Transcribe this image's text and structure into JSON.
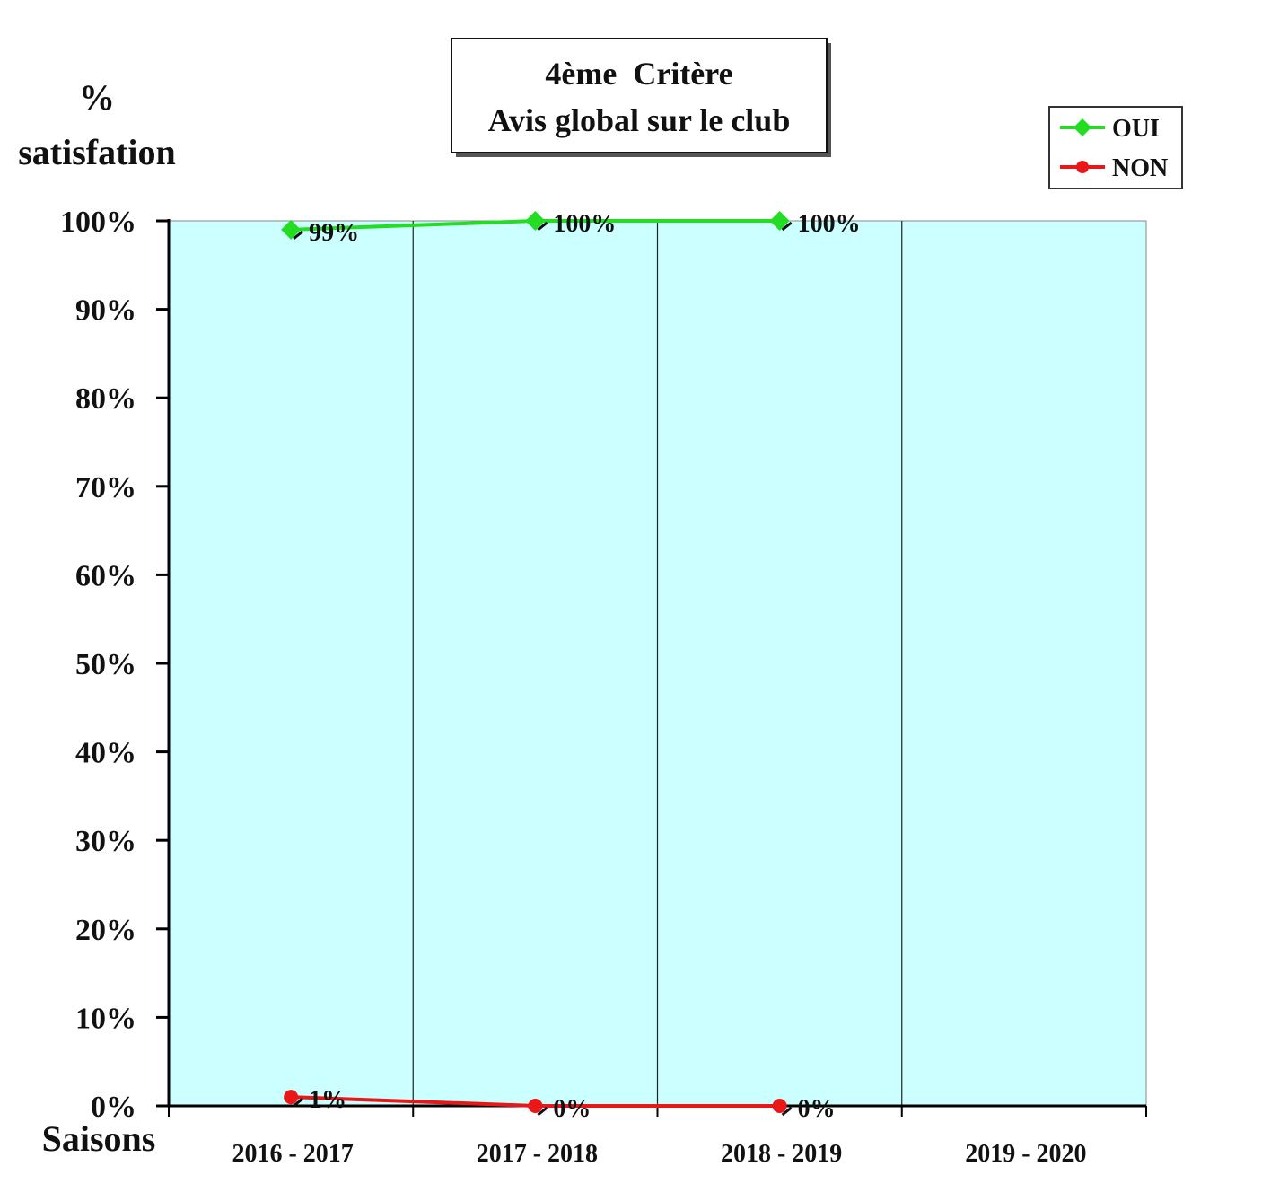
{
  "chart_data": {
    "type": "line",
    "title": [
      "4ème  Critère",
      "Avis global sur le club"
    ],
    "ylabel": [
      "%",
      "satisfation"
    ],
    "xlabel": "Saisons",
    "categories": [
      "2016 - 2017",
      "2017 - 2018",
      "2018 - 2019",
      "2019 - 2020"
    ],
    "ylim": [
      0,
      100
    ],
    "yticks": [
      0,
      10,
      20,
      30,
      40,
      50,
      60,
      70,
      80,
      90,
      100
    ],
    "ytick_labels": [
      "0%",
      "10%",
      "20%",
      "30%",
      "40%",
      "50%",
      "60%",
      "70%",
      "80%",
      "90%",
      "100%"
    ],
    "series": [
      {
        "name": "OUI",
        "values": [
          99,
          100,
          100,
          null
        ],
        "labels": [
          "99%",
          "100%",
          "100%",
          ""
        ],
        "color": "#22dd22",
        "marker": "diamond"
      },
      {
        "name": "NON",
        "values": [
          1,
          0,
          0,
          null
        ],
        "labels": [
          "1%",
          "0%",
          "0%",
          ""
        ],
        "color": "#e81818",
        "marker": "circle"
      }
    ],
    "plot_background": "#ccffff",
    "grid": "vertical category separators",
    "legend_position": "top-right"
  }
}
